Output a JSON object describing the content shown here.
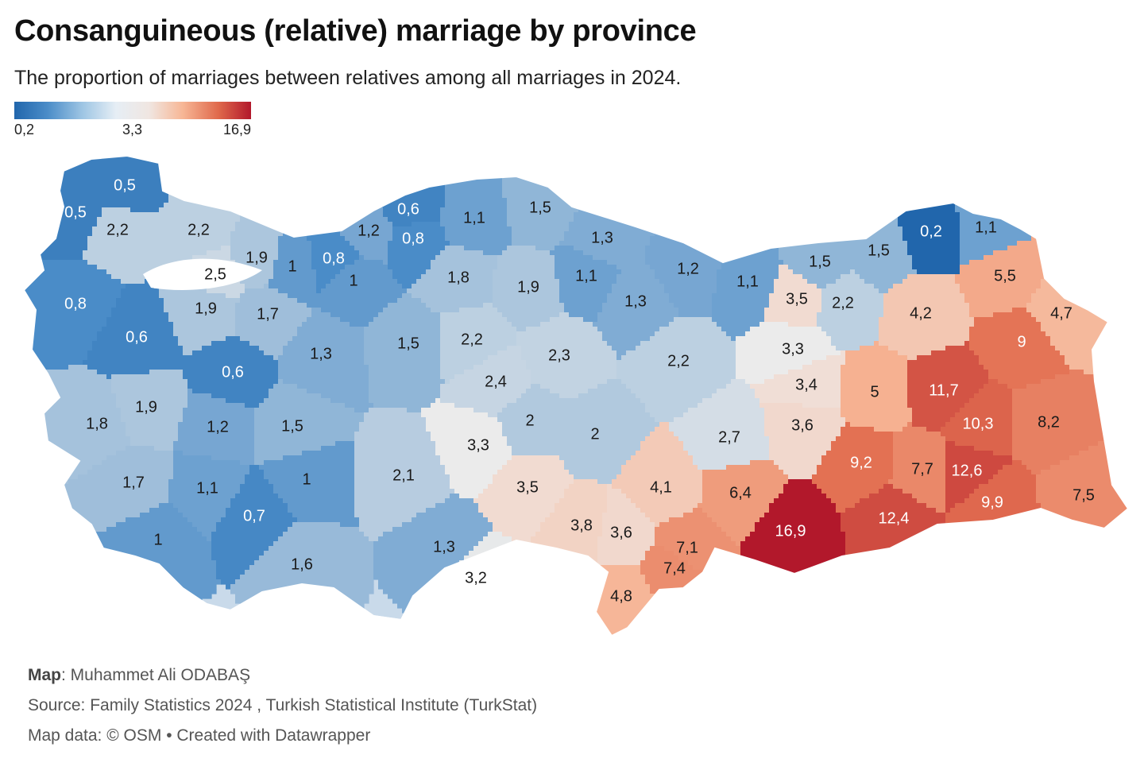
{
  "title": "Consanguineous (relative) marriage by province",
  "subtitle": "The proportion of marriages between relatives among all marriages in 2024.",
  "legend": {
    "min_label": "0,2",
    "mid_label": "3,3",
    "max_label": "16,9",
    "colors": [
      "#2166ac",
      "#4a8cc8",
      "#9fc6e4",
      "#e6eef5",
      "#f0e6e1",
      "#f7b796",
      "#e06a4c",
      "#b2182b"
    ]
  },
  "chart_data": {
    "type": "choropleth",
    "region": "Turkey provinces",
    "scale": {
      "min": 0.2,
      "mid": 3.3,
      "max": 16.9
    },
    "labels": [
      {
        "v": 0.5,
        "t": "0,5"
      },
      {
        "v": 0.5,
        "t": "0,5"
      },
      {
        "v": 2.2,
        "t": "2,2"
      },
      {
        "v": 2.2,
        "t": "2,2"
      },
      {
        "v": 1.9,
        "t": "1,9"
      },
      {
        "v": 2.5,
        "t": "2,5"
      },
      {
        "v": 1.0,
        "t": "1"
      },
      {
        "v": 0.8,
        "t": "0,8"
      },
      {
        "v": 1.0,
        "t": "1"
      },
      {
        "v": 1.2,
        "t": "1,2"
      },
      {
        "v": 0.6,
        "t": "0,6"
      },
      {
        "v": 0.8,
        "t": "0,8"
      },
      {
        "v": 1.1,
        "t": "1,1"
      },
      {
        "v": 1.5,
        "t": "1,5"
      },
      {
        "v": 1.3,
        "t": "1,3"
      },
      {
        "v": 1.8,
        "t": "1,8"
      },
      {
        "v": 1.9,
        "t": "1,9"
      },
      {
        "v": 1.1,
        "t": "1,1"
      },
      {
        "v": 1.2,
        "t": "1,2"
      },
      {
        "v": 1.3,
        "t": "1,3"
      },
      {
        "v": 1.1,
        "t": "1,1"
      },
      {
        "v": 1.5,
        "t": "1,5"
      },
      {
        "v": 1.5,
        "t": "1,5"
      },
      {
        "v": 0.2,
        "t": "0,2"
      },
      {
        "v": 1.1,
        "t": "1,1"
      },
      {
        "v": 0.8,
        "t": "0,8"
      },
      {
        "v": 0.6,
        "t": "0,6"
      },
      {
        "v": 1.9,
        "t": "1,9"
      },
      {
        "v": 1.7,
        "t": "1,7"
      },
      {
        "v": 1.3,
        "t": "1,3"
      },
      {
        "v": 1.5,
        "t": "1,5"
      },
      {
        "v": 2.2,
        "t": "2,2"
      },
      {
        "v": 2.3,
        "t": "2,3"
      },
      {
        "v": 2.2,
        "t": "2,2"
      },
      {
        "v": 3.5,
        "t": "3,5"
      },
      {
        "v": 2.2,
        "t": "2,2"
      },
      {
        "v": 4.2,
        "t": "4,2"
      },
      {
        "v": 5.5,
        "t": "5,5"
      },
      {
        "v": 4.7,
        "t": "4,7"
      },
      {
        "v": 9.0,
        "t": "9"
      },
      {
        "v": 3.3,
        "t": "3,3"
      },
      {
        "v": 3.4,
        "t": "3,4"
      },
      {
        "v": 5.0,
        "t": "5"
      },
      {
        "v": 11.7,
        "t": "11,7"
      },
      {
        "v": 0.6,
        "t": "0,6"
      },
      {
        "v": 2.4,
        "t": "2,4"
      },
      {
        "v": 1.8,
        "t": "1,8"
      },
      {
        "v": 1.9,
        "t": "1,9"
      },
      {
        "v": 1.2,
        "t": "1,2"
      },
      {
        "v": 1.5,
        "t": "1,5"
      },
      {
        "v": 2.0,
        "t": "2"
      },
      {
        "v": 2.0,
        "t": "2"
      },
      {
        "v": 3.6,
        "t": "3,6"
      },
      {
        "v": 10.3,
        "t": "10,3"
      },
      {
        "v": 8.2,
        "t": "8,2"
      },
      {
        "v": 3.3,
        "t": "3,3"
      },
      {
        "v": 2.7,
        "t": "2,7"
      },
      {
        "v": 9.2,
        "t": "9,2"
      },
      {
        "v": 7.7,
        "t": "7,7"
      },
      {
        "v": 12.6,
        "t": "12,6"
      },
      {
        "v": 1.7,
        "t": "1,7"
      },
      {
        "v": 1.1,
        "t": "1,1"
      },
      {
        "v": 1.0,
        "t": "1"
      },
      {
        "v": 2.1,
        "t": "2,1"
      },
      {
        "v": 3.5,
        "t": "3,5"
      },
      {
        "v": 4.1,
        "t": "4,1"
      },
      {
        "v": 6.4,
        "t": "6,4"
      },
      {
        "v": 9.9,
        "t": "9,9"
      },
      {
        "v": 7.5,
        "t": "7,5"
      },
      {
        "v": 0.7,
        "t": "0,7"
      },
      {
        "v": 1.0,
        "t": "1"
      },
      {
        "v": 1.6,
        "t": "1,6"
      },
      {
        "v": 1.3,
        "t": "1,3"
      },
      {
        "v": 3.8,
        "t": "3,8"
      },
      {
        "v": 3.6,
        "t": "3,6"
      },
      {
        "v": 16.9,
        "t": "16,9"
      },
      {
        "v": 12.4,
        "t": "12,4"
      },
      {
        "v": 7.1,
        "t": "7,1"
      },
      {
        "v": 7.4,
        "t": "7,4"
      },
      {
        "v": 3.2,
        "t": "3,2"
      },
      {
        "v": 4.8,
        "t": "4,8"
      }
    ]
  },
  "footer": {
    "map_label": "Map",
    "map_author": ": Muhammet Ali ODABAŞ",
    "source": "Source: Family Statistics 2024 , Turkish Statistical Institute (TurkStat)",
    "credit": "Map data: © OSM • Created with Datawrapper"
  }
}
